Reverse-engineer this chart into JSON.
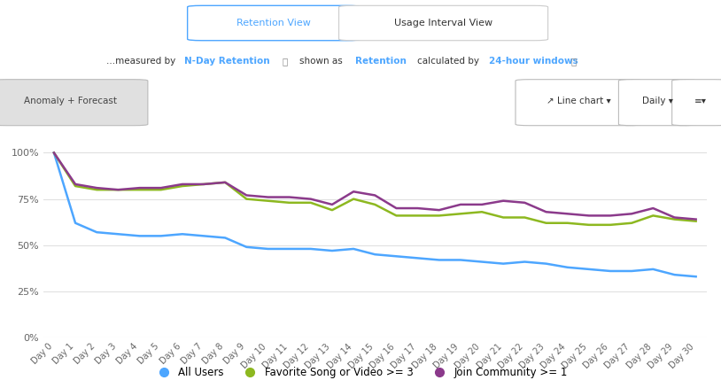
{
  "x_labels": [
    "Day 0",
    "Day 1",
    "Day 2",
    "Day 3",
    "Day 4",
    "Day 5",
    "Day 6",
    "Day 7",
    "Day 8",
    "Day 9",
    "Day 10",
    "Day 11",
    "Day 12",
    "Day 13",
    "Day 14",
    "Day 15",
    "Day 16",
    "Day 17",
    "Day 18",
    "Day 19",
    "Day 20",
    "Day 21",
    "Day 22",
    "Day 23",
    "Day 24",
    "Day 25",
    "Day 26",
    "Day 27",
    "Day 28",
    "Day 29",
    "Day 30"
  ],
  "all_users": [
    100,
    62,
    57,
    56,
    55,
    55,
    56,
    55,
    54,
    49,
    48,
    48,
    48,
    47,
    48,
    45,
    44,
    43,
    42,
    42,
    41,
    40,
    41,
    40,
    38,
    37,
    36,
    36,
    37,
    34,
    33
  ],
  "favorite_song": [
    100,
    82,
    80,
    80,
    80,
    80,
    82,
    83,
    84,
    75,
    74,
    73,
    73,
    69,
    75,
    72,
    66,
    66,
    66,
    67,
    68,
    65,
    65,
    62,
    62,
    61,
    61,
    62,
    66,
    64,
    63
  ],
  "join_community": [
    100,
    83,
    81,
    80,
    81,
    81,
    83,
    83,
    84,
    77,
    76,
    76,
    75,
    72,
    79,
    77,
    70,
    70,
    69,
    72,
    72,
    74,
    73,
    68,
    67,
    66,
    66,
    67,
    70,
    65,
    64
  ],
  "all_users_color": "#4da6ff",
  "favorite_song_color": "#8db820",
  "join_community_color": "#8b3a8b",
  "background_color": "#ffffff",
  "grid_color": "#e0e0e0",
  "yticks": [
    0,
    25,
    50,
    75,
    100
  ],
  "ytick_labels": [
    "0%",
    "25%",
    "50%",
    "75%",
    "100%"
  ],
  "legend_labels": [
    "All Users",
    "Favorite Song or Video >= 3",
    "Join Community >= 1"
  ],
  "anomaly_button_text": "Anomaly + Forecast",
  "chart_type_text": "Line chart",
  "interval_text": "Daily"
}
